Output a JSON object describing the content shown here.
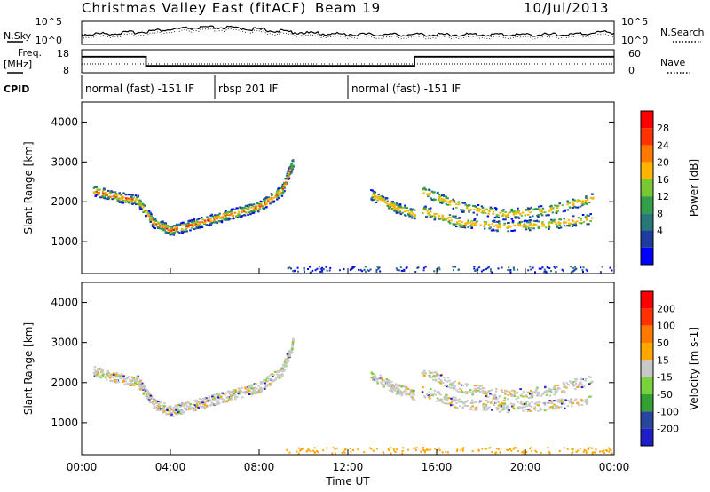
{
  "header": {
    "title": "Christmas Valley East (fitACF)",
    "beam": "Beam 19",
    "date": "10/Jul/2013"
  },
  "noise_panel": {
    "left_label": "N.Sky",
    "right_label": "N.Search",
    "left_ticks": [
      "10^5",
      "10^0"
    ],
    "right_ticks": [
      "10^5",
      "10^0"
    ]
  },
  "freq_panel": {
    "left_label_line1": "Freq.",
    "left_label_line2": "[MHz]",
    "right_label": "Nave",
    "left_ticks": [
      "18",
      "8"
    ],
    "right_ticks": [
      "60",
      "0"
    ]
  },
  "cpid": {
    "label": "CPID",
    "segments": [
      {
        "text": "normal (fast) -151 IF",
        "start_hour": 0,
        "end_hour": 6
      },
      {
        "text": "rbsp 201 IF",
        "start_hour": 6,
        "end_hour": 12
      },
      {
        "text": "normal (fast) -151 IF",
        "start_hour": 12,
        "end_hour": 24
      }
    ]
  },
  "power_panel": {
    "ylabel": "Slant Range [km]",
    "colorbar_label": "Power [dB]",
    "colorbar_ticks": [
      "28",
      "24",
      "20",
      "16",
      "12",
      "8",
      "4"
    ],
    "colors": [
      "#0000ff",
      "#1e3ca0",
      "#287878",
      "#32a04b",
      "#78c832",
      "#ffb400",
      "#ff7800",
      "#ff3200",
      "#ff0000"
    ]
  },
  "velocity_panel": {
    "ylabel": "Slant Range [km]",
    "colorbar_label": "Velocity [m s-1]",
    "colorbar_ticks": [
      "200",
      "100",
      "50",
      "15",
      "-15",
      "-50",
      "-100",
      "-200"
    ],
    "colors": [
      "#1e1ec8",
      "#2846a0",
      "#32a032",
      "#78d23c",
      "#c8c8c8",
      "#ffa500",
      "#ff7800",
      "#ff3200",
      "#ff0000"
    ],
    "ground_scatter_color": "#c8c8c8"
  },
  "x_axis": {
    "label": "Time UT",
    "ticks": [
      "00:00",
      "04:00",
      "08:00",
      "12:00",
      "16:00",
      "20:00",
      "00:00"
    ]
  },
  "chart_data": {
    "type": "heatmap",
    "title": "Christmas Valley East (fitACF)",
    "subtitle": "Beam 19",
    "date": "10/Jul/2013",
    "xlabel": "Time UT",
    "ylabel": "Slant Range [km]",
    "xlim_hours": [
      0,
      24
    ],
    "ylim_km": [
      200,
      4500
    ],
    "yticks_km": [
      1000,
      2000,
      3000,
      4000
    ],
    "frequency_mhz": [
      {
        "start_hour": 0,
        "end_hour": 2.9,
        "value": 15
      },
      {
        "start_hour": 2.9,
        "end_hour": 15,
        "value": 11
      },
      {
        "start_hour": 15,
        "end_hour": 24,
        "value": 15
      }
    ],
    "power_colorbar_db": [
      4,
      8,
      12,
      16,
      20,
      24,
      28
    ],
    "velocity_colorbar_ms": [
      -200,
      -100,
      -50,
      -15,
      15,
      50,
      100,
      200
    ],
    "scatter_bands": [
      {
        "name": "",
        "points": [
          [
            0.5,
            2300
          ],
          [
            1.5,
            2150
          ],
          [
            2.5,
            2050
          ],
          [
            3.2,
            1500
          ],
          [
            4.0,
            1300
          ],
          [
            5.0,
            1450
          ],
          [
            6.0,
            1600
          ],
          [
            7.0,
            1750
          ],
          [
            8.0,
            1900
          ],
          [
            9.0,
            2300
          ],
          [
            9.5,
            3000
          ]
        ]
      },
      {
        "name": "",
        "points": [
          [
            13.0,
            2200
          ],
          [
            14.0,
            1900
          ],
          [
            15.0,
            1700
          ]
        ]
      },
      {
        "name": "",
        "points": [
          [
            15.3,
            2300
          ],
          [
            17.0,
            1900
          ],
          [
            19.0,
            1700
          ],
          [
            21.0,
            1800
          ],
          [
            23.0,
            2100
          ]
        ]
      },
      {
        "name": "",
        "points": [
          [
            15.3,
            1800
          ],
          [
            17.0,
            1500
          ],
          [
            19.0,
            1400
          ],
          [
            21.0,
            1450
          ],
          [
            23.0,
            1600
          ]
        ]
      }
    ]
  }
}
